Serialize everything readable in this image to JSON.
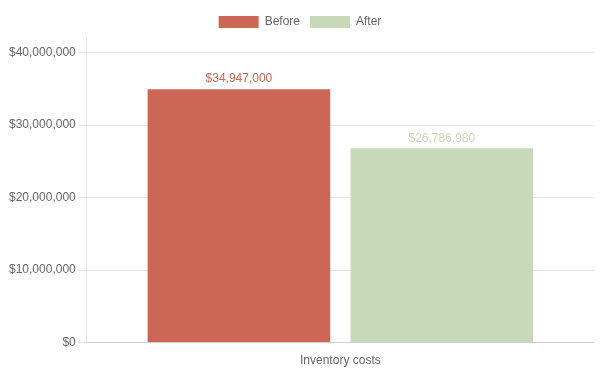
{
  "chart_data": {
    "type": "bar",
    "categories": [
      "Inventory costs"
    ],
    "series": [
      {
        "name": "Before",
        "color": "#CC6655",
        "values": [
          34947000
        ],
        "value_labels": [
          "$34,947,000"
        ]
      },
      {
        "name": "After",
        "color": "#C8D9B8",
        "values": [
          26786980
        ],
        "value_labels": [
          "$26,786,980"
        ]
      }
    ],
    "ylim": [
      0,
      42000000
    ],
    "yticks": [
      {
        "value": 0,
        "label": "$0"
      },
      {
        "value": 10000000,
        "label": "$10,000,000"
      },
      {
        "value": 20000000,
        "label": "$20,000,000"
      },
      {
        "value": 30000000,
        "label": "$30,000,000"
      },
      {
        "value": 40000000,
        "label": "$40,000,000"
      }
    ],
    "grid": true,
    "legend": "top",
    "data_labels": true
  }
}
